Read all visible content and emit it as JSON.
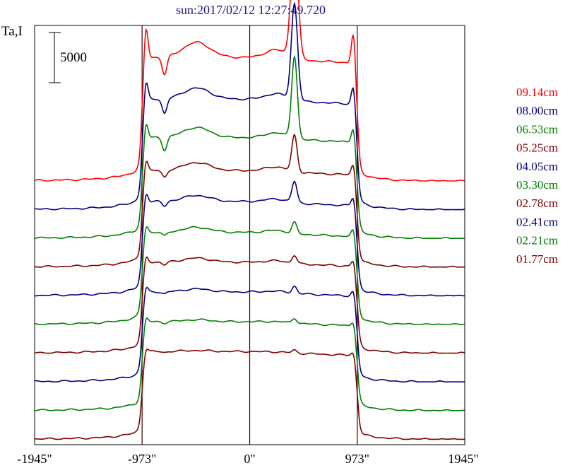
{
  "title": "sun:2017/02/12 12:27:49.720",
  "chart_data": {
    "type": "line",
    "title": "sun:2017/02/12 12:27:49.720",
    "ylabel": "Ta,I",
    "scale_bar_label": "5000",
    "scale_bar_value": 5000,
    "xlim": [
      -1945,
      1945
    ],
    "x_tick_labels": [
      "-1945\"",
      "-973\"",
      "0\"",
      "973\"",
      "1945\""
    ],
    "x_tick_values": [
      -1945,
      -973,
      0,
      973,
      1945
    ],
    "vertical_lines": [
      -973,
      0,
      973
    ],
    "stacked_offsets": true,
    "series": [
      {
        "name": "09.14cm",
        "color": "#ff0000",
        "baseline": 0,
        "disk": 11400,
        "peak_extra": 11800,
        "peak_width": 45,
        "limb_bump": 3300,
        "dip": 1800,
        "bump_mid": 1500
      },
      {
        "name": "08.00cm",
        "color": "#00007f",
        "baseline": 0,
        "disk": 10200,
        "peak_extra": 9600,
        "peak_width": 40,
        "limb_bump": 2000,
        "dip": 1500,
        "bump_mid": 1100
      },
      {
        "name": "06.53cm",
        "color": "#007f00",
        "baseline": 0,
        "disk": 9300,
        "peak_extra": 8200,
        "peak_width": 36,
        "limb_bump": 1700,
        "dip": 1300,
        "bump_mid": 1000
      },
      {
        "name": "05.25cm",
        "color": "#7f0000",
        "baseline": 0,
        "disk": 8900,
        "peak_extra": 3600,
        "peak_width": 34,
        "limb_bump": 1300,
        "dip": 700,
        "bump_mid": 800
      },
      {
        "name": "04.05cm",
        "color": "#00007f",
        "baseline": 0,
        "disk": 8700,
        "peak_extra": 2100,
        "peak_width": 32,
        "limb_bump": 1100,
        "dip": 500,
        "bump_mid": 600
      },
      {
        "name": "03.30cm",
        "color": "#007f00",
        "baseline": 0,
        "disk": 8500,
        "peak_extra": 1100,
        "peak_width": 30,
        "limb_bump": 900,
        "dip": 400,
        "bump_mid": 500
      },
      {
        "name": "02.78cm",
        "color": "#7f0000",
        "baseline": 0,
        "disk": 8400,
        "peak_extra": 800,
        "peak_width": 30,
        "limb_bump": 800,
        "dip": 300,
        "bump_mid": 400
      },
      {
        "name": "02.41cm",
        "color": "#00007f",
        "baseline": 0,
        "disk": 8300,
        "peak_extra": 700,
        "peak_width": 30,
        "limb_bump": 700,
        "dip": 200,
        "bump_mid": 300
      },
      {
        "name": "02.21cm",
        "color": "#007f00",
        "baseline": 0,
        "disk": 8200,
        "peak_extra": 500,
        "peak_width": 30,
        "limb_bump": 600,
        "dip": 150,
        "bump_mid": 200
      },
      {
        "name": "01.77cm",
        "color": "#7f0000",
        "baseline": 0,
        "disk": 8100,
        "peak_extra": 300,
        "peak_width": 30,
        "limb_bump": 500,
        "dip": 100,
        "bump_mid": 100
      }
    ]
  }
}
